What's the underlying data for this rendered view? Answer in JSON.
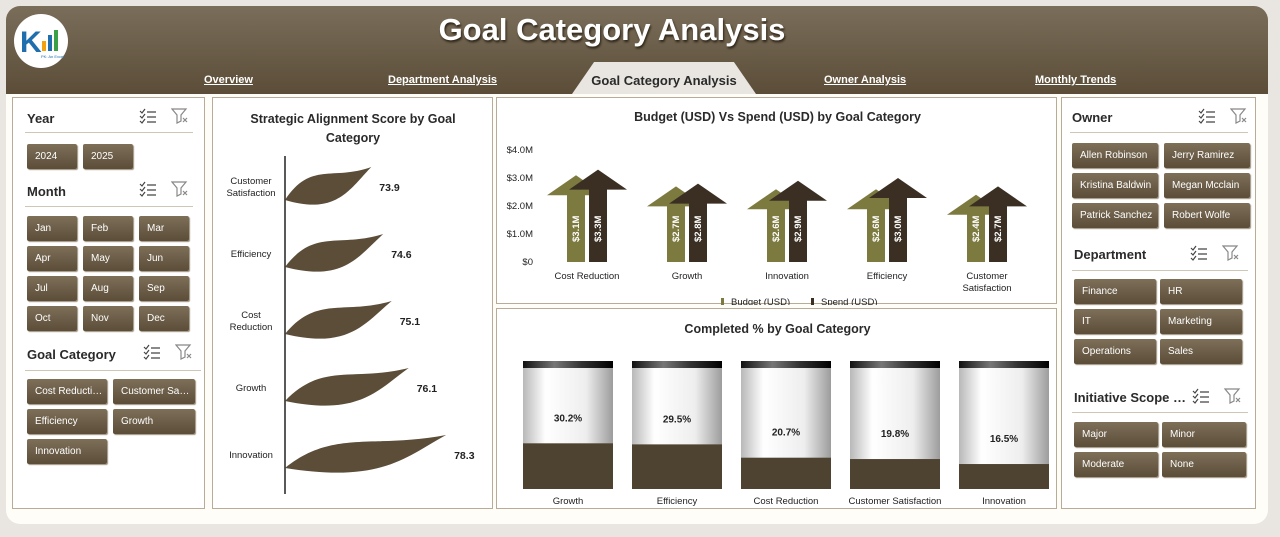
{
  "header": {
    "title": "Goal Category Analysis",
    "tabs": [
      "Overview",
      "Department Analysis",
      "Goal Category Analysis",
      "Owner Analysis",
      "Monthly Trends"
    ],
    "active_tab": "Goal Category Analysis"
  },
  "slicers": {
    "year": {
      "title": "Year",
      "items": [
        "2024",
        "2025"
      ]
    },
    "month": {
      "title": "Month",
      "items": [
        "Jan",
        "Feb",
        "Mar",
        "Apr",
        "May",
        "Jun",
        "Jul",
        "Aug",
        "Sep",
        "Oct",
        "Nov",
        "Dec"
      ]
    },
    "goal_category": {
      "title": "Goal Category",
      "items": [
        "Cost Reducti…",
        "Customer Sa…",
        "Efficiency",
        "Growth",
        "Innovation"
      ]
    },
    "owner": {
      "title": "Owner",
      "items": [
        "Allen Robinson",
        "Jerry Ramirez",
        "Kristina Baldwin",
        "Megan Mcclain",
        "Patrick Sanchez",
        "Robert Wolfe"
      ]
    },
    "department": {
      "title": "Department",
      "items": [
        "Finance",
        "HR",
        "IT",
        "Marketing",
        "Operations",
        "Sales"
      ]
    },
    "initiative_scope": {
      "title": "Initiative Scope …",
      "items": [
        "Major",
        "Minor",
        "Moderate",
        "None"
      ]
    }
  },
  "chart_data": [
    {
      "type": "bar",
      "title": "Strategic Alignment Score by Goal Category",
      "categories": [
        "Customer Satisfaction",
        "Efficiency",
        "Cost Reduction",
        "Growth",
        "Innovation"
      ],
      "values": [
        73.9,
        74.6,
        75.1,
        76.1,
        78.3
      ],
      "colors": [
        "#5b4d38"
      ]
    },
    {
      "type": "bar",
      "title": "Budget (USD) Vs Spend (USD) by Goal Category",
      "categories": [
        "Cost Reduction",
        "Growth",
        "Innovation",
        "Efficiency",
        "Customer Satisfaction"
      ],
      "series": [
        {
          "name": "Budget (USD)",
          "values": [
            3.1,
            2.7,
            2.6,
            2.6,
            2.4
          ],
          "labels": [
            "$3.1M",
            "$2.7M",
            "$2.6M",
            "$2.6M",
            "$2.4M"
          ],
          "color": "#7d7a40"
        },
        {
          "name": "Spend (USD)",
          "values": [
            3.3,
            2.8,
            2.9,
            3.0,
            2.7
          ],
          "labels": [
            "$3.3M",
            "$2.8M",
            "$2.9M",
            "$3.0M",
            "$2.7M"
          ],
          "color": "#3a2f22"
        }
      ],
      "yticks": [
        "$0",
        "$1.0M",
        "$2.0M",
        "$3.0M",
        "$4.0M"
      ],
      "ylim": [
        0,
        4
      ],
      "legend": "bottom"
    },
    {
      "type": "bar",
      "title": "Completed % by Goal Category",
      "categories": [
        "Growth",
        "Efficiency",
        "Cost Reduction",
        "Customer Satisfaction",
        "Innovation"
      ],
      "values": [
        30.2,
        29.5,
        20.7,
        19.8,
        16.5
      ],
      "labels": [
        "30.2%",
        "29.5%",
        "20.7%",
        "19.8%",
        "16.5%"
      ],
      "ylim": [
        0,
        100
      ]
    }
  ]
}
